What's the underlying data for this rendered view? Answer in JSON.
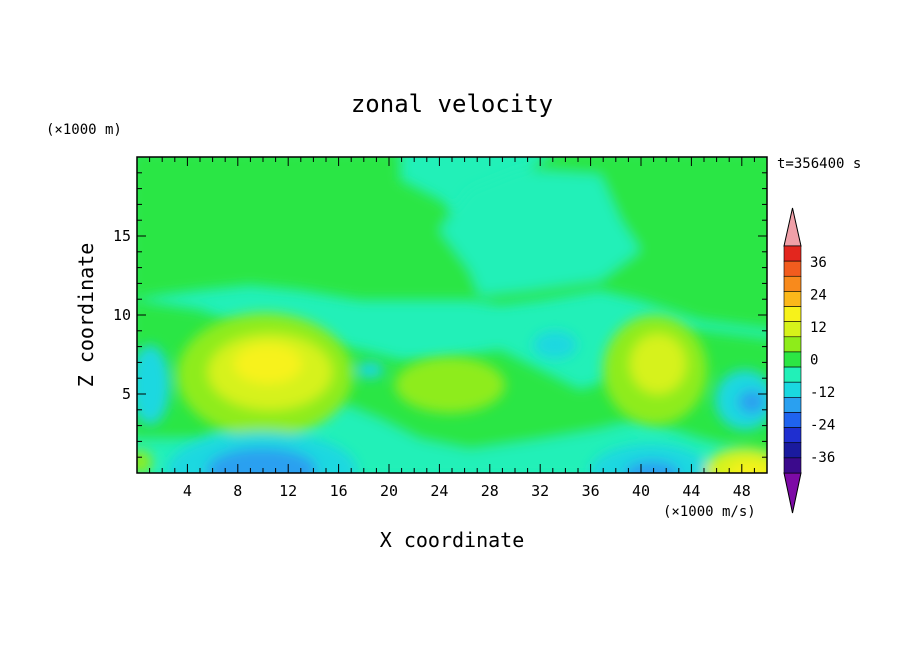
{
  "chart_data": {
    "type": "heatmap",
    "title": "zonal velocity",
    "xlabel": "X coordinate",
    "ylabel": "Z coordinate",
    "x_unit_label": "(×1000 m/s)",
    "y_unit_label": "(×1000 m)",
    "time_label": "t=356400 s",
    "xlim": [
      0,
      50
    ],
    "ylim": [
      0,
      20
    ],
    "x_ticks": [
      4,
      8,
      12,
      16,
      20,
      24,
      28,
      32,
      36,
      40,
      44,
      48
    ],
    "y_ticks": [
      5,
      10,
      15
    ],
    "colorbar": {
      "levels": [
        -42,
        -36,
        -30,
        -24,
        -18,
        -12,
        -6,
        0,
        6,
        12,
        18,
        24,
        30,
        36,
        42
      ],
      "tick_labels": [
        36,
        24,
        12,
        0,
        -12,
        -24,
        -36
      ],
      "colors": [
        "#3b0a8c",
        "#1a1a9e",
        "#1f2fd0",
        "#1f63ee",
        "#2aa0f0",
        "#1ad8e0",
        "#22f0b8",
        "#2ce644",
        "#8eec1a",
        "#d6f21a",
        "#f7f21a",
        "#fbb81a",
        "#f88a1c",
        "#f25c1e",
        "#e3261e"
      ],
      "under_color": "#7d0aa6",
      "over_color": "#f0a0a8"
    },
    "features": [
      {
        "x": 11,
        "z": 7,
        "value": 15,
        "desc": "positive core"
      },
      {
        "x": 11,
        "z": 0.8,
        "value": -15,
        "desc": "negative core"
      },
      {
        "x": 41,
        "z": 7,
        "value": 11,
        "desc": "positive core"
      },
      {
        "x": 40,
        "z": 0.5,
        "value": -14,
        "desc": "negative core"
      },
      {
        "x": 48.5,
        "z": 0.5,
        "value": 14,
        "desc": "positive corner"
      },
      {
        "x": 49,
        "z": 4.5,
        "value": -14,
        "desc": "negative edge"
      },
      {
        "x": 30,
        "z": 15,
        "value": -5,
        "desc": "weak negative upper"
      }
    ]
  }
}
